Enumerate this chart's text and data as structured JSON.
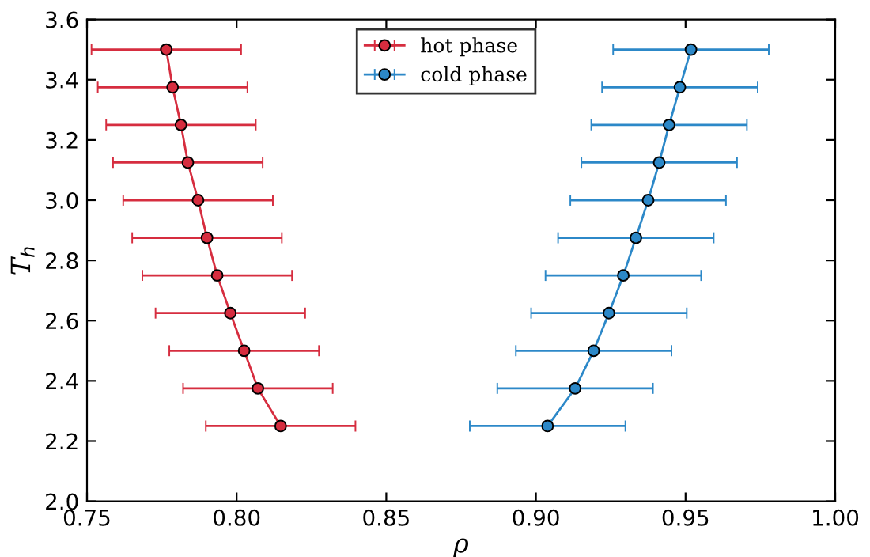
{
  "chart_data": {
    "type": "line",
    "xlabel": "ρ",
    "ylabel": "T$_{h}$",
    "xlim": [
      0.75,
      1.0
    ],
    "xticks": [
      {
        "value": 0.75,
        "label": "0.75"
      },
      {
        "value": 0.8,
        "label": "0.80"
      },
      {
        "value": 0.85,
        "label": "0.85"
      },
      {
        "value": 0.9,
        "label": "0.90"
      },
      {
        "value": 0.95,
        "label": "0.95"
      },
      {
        "value": 1.0,
        "label": "1.00"
      }
    ],
    "ylim": [
      2.0,
      3.6
    ],
    "yticks": [
      {
        "value": 2.0,
        "label": "2.0"
      },
      {
        "value": 2.2,
        "label": "2.2"
      },
      {
        "value": 2.4,
        "label": "2.4"
      },
      {
        "value": 2.6,
        "label": "2.6"
      },
      {
        "value": 2.8,
        "label": "2.8"
      },
      {
        "value": 3.0,
        "label": "3.0"
      },
      {
        "value": 3.2,
        "label": "3.2"
      },
      {
        "value": 3.4,
        "label": "3.4"
      },
      {
        "value": 3.6,
        "label": "3.6"
      }
    ],
    "marker": "circle",
    "line_style": "solid",
    "legend": "top center",
    "series": [
      {
        "name": "hot phase",
        "color": "#d62d3f",
        "values": [
          3.5,
          3.375,
          3.25,
          3.125,
          3.0,
          2.875,
          2.75,
          2.625,
          2.5,
          2.375,
          2.25
        ],
        "x": [
          0.7765,
          0.7786,
          0.7814,
          0.7837,
          0.7871,
          0.7901,
          0.7935,
          0.7979,
          0.8025,
          0.8071,
          0.8147
        ],
        "xerrors": [
          0.025,
          0.025,
          0.025,
          0.025,
          0.025,
          0.025,
          0.025,
          0.025,
          0.025,
          0.025,
          0.025
        ]
      },
      {
        "name": "cold phase",
        "color": "#2c88c8",
        "values": [
          3.5,
          3.375,
          3.25,
          3.125,
          3.0,
          2.875,
          2.75,
          2.625,
          2.5,
          2.375,
          2.25
        ],
        "x": [
          0.9518,
          0.9481,
          0.9445,
          0.9412,
          0.9375,
          0.9334,
          0.9292,
          0.9244,
          0.9193,
          0.9131,
          0.9039
        ],
        "xerrors": [
          0.026,
          0.026,
          0.026,
          0.026,
          0.026,
          0.026,
          0.026,
          0.026,
          0.026,
          0.026,
          0.026
        ]
      }
    ]
  }
}
